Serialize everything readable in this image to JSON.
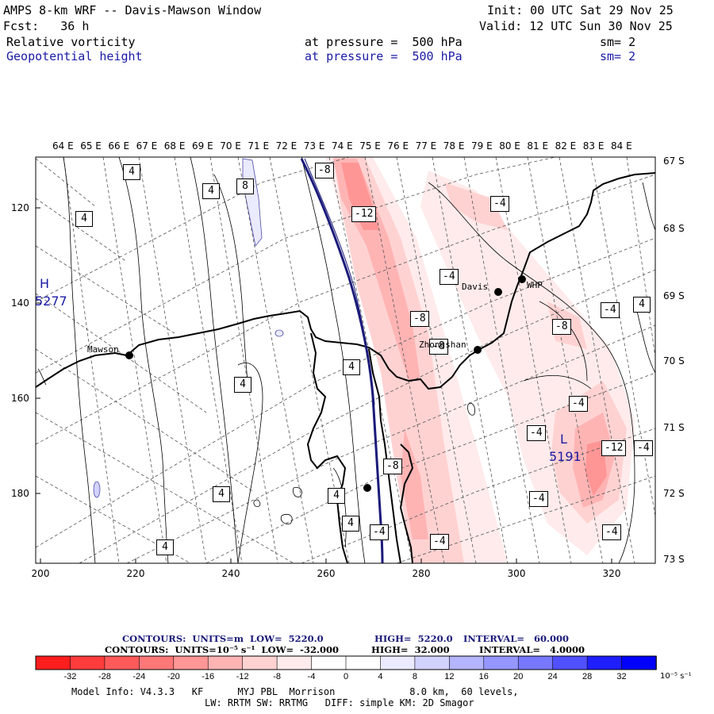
{
  "header": {
    "title": "AMPS 8-km WRF -- Davis-Mawson Window",
    "init": "Init: 00 UTC Sat 29 Nov 25",
    "fcst": "Fcst:   36 h",
    "valid": "Valid: 12 UTC Sun 30 Nov 25",
    "field1": {
      "name": "Relative vorticity",
      "level": "at pressure =  500 hPa",
      "sm": "sm= 2"
    },
    "field2": {
      "name": "Geopotential height",
      "level": "at pressure =  500 hPa",
      "sm": "sm= 2"
    }
  },
  "axes": {
    "lon_labels": [
      "64 E",
      "65 E",
      "66 E",
      "67 E",
      "68 E",
      "69 E",
      "70 E",
      "71 E",
      "72 E",
      "73 E",
      "74 E",
      "75 E",
      "76 E",
      "77 E",
      "78 E",
      "79 E",
      "80 E",
      "81 E",
      "82 E",
      "83 E",
      "84 E"
    ],
    "lat_labels": [
      "67 S",
      "68 S",
      "69 S",
      "70 S",
      "71 S",
      "72 S",
      "73 S"
    ],
    "y_labels": [
      "120",
      "140",
      "160",
      "180"
    ],
    "x_labels": [
      "200",
      "220",
      "240",
      "260",
      "280",
      "300",
      "320"
    ]
  },
  "stations": [
    {
      "name": "Mawson"
    },
    {
      "name": "Davis"
    },
    {
      "name": "WHP"
    },
    {
      "name": "Zhongshan"
    }
  ],
  "pressure_centers": [
    {
      "label": "H",
      "value": "5277"
    },
    {
      "label": "L",
      "value": "5191"
    }
  ],
  "contour_labels": [
    "4",
    "4",
    "4",
    "8",
    "-8",
    "-12",
    "-4",
    "-4",
    "-8",
    "-8",
    "-4",
    "4",
    "4",
    "-8",
    "-4",
    "-4",
    "-12",
    "-4",
    "-4",
    "-4",
    "4",
    "4",
    "4",
    "4",
    "4",
    "-4",
    "-8",
    "-4"
  ],
  "footer": {
    "contours1": {
      "label": "CONTOURS:  UNITS=m  LOW=  5220.0",
      "high": "HIGH=  5220.0",
      "interval": "INTERVAL=   60.000"
    },
    "contours2": {
      "label": "CONTOURS:  UNITS=10⁻⁵ s⁻¹  LOW=  -32.000",
      "high": "HIGH=  32.000",
      "interval": "INTERVAL=   4.0000"
    },
    "model_info_1": "Model Info: V4.3.3   KF      MYJ PBL  Morrison             8.0 km,  60 levels,",
    "model_info_2": "LW: RRTM SW: RRTMG   DIFF: simple KM: 2D Smagor"
  },
  "colorbar": {
    "ticks": [
      "-32",
      "-28",
      "-24",
      "-20",
      "-16",
      "-12",
      "-8",
      "-4",
      "0",
      "4",
      "8",
      "12",
      "16",
      "20",
      "24",
      "28",
      "32"
    ],
    "unit": "10⁻⁵ s⁻¹",
    "colors": [
      "#ff1e1e",
      "#ff3c3c",
      "#ff5a5a",
      "#ff7878",
      "#ff9696",
      "#ffb4b4",
      "#ffd2d2",
      "#ffebeb",
      "#ffffff",
      "#ffffff",
      "#ebebff",
      "#d2d2ff",
      "#b4b4ff",
      "#9696ff",
      "#7878ff",
      "#5050ff",
      "#1e1eff",
      "#0000ff"
    ]
  }
}
